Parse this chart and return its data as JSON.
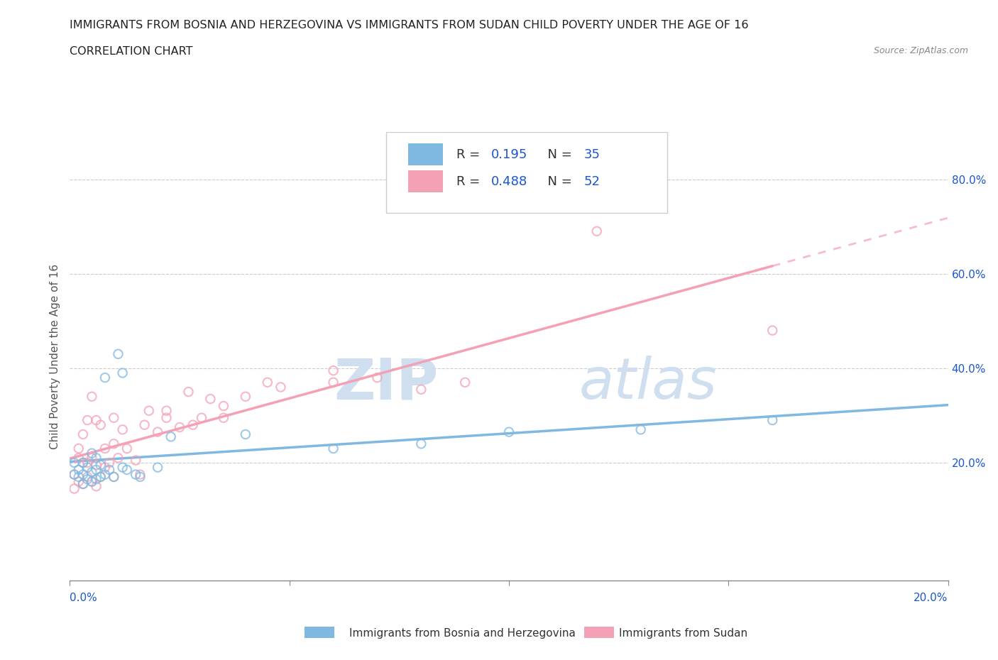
{
  "title_line1": "IMMIGRANTS FROM BOSNIA AND HERZEGOVINA VS IMMIGRANTS FROM SUDAN CHILD POVERTY UNDER THE AGE OF 16",
  "title_line2": "CORRELATION CHART",
  "source": "Source: ZipAtlas.com",
  "ylabel": "Child Poverty Under the Age of 16",
  "xlabel_bosnia": "Immigrants from Bosnia and Herzegovina",
  "xlabel_sudan": "Immigrants from Sudan",
  "xlim": [
    0.0,
    0.2
  ],
  "ylim": [
    -0.05,
    0.9
  ],
  "plot_ylim": [
    0.0,
    0.9
  ],
  "xtick_left_label": "0.0%",
  "xtick_right_label": "20.0%",
  "xtick_left_val": 0.0,
  "xtick_right_val": 0.2,
  "ytick_labels": [
    "20.0%",
    "40.0%",
    "60.0%",
    "80.0%"
  ],
  "ytick_positions": [
    0.2,
    0.4,
    0.6,
    0.8
  ],
  "R_bosnia": 0.195,
  "N_bosnia": 35,
  "R_sudan": 0.488,
  "N_sudan": 52,
  "color_bosnia": "#7fb8e0",
  "color_sudan": "#f4a0b5",
  "color_R": "#1a56cc",
  "watermark_zip": "ZIP",
  "watermark_atlas": "atlas",
  "watermark_color": "#d0dff0",
  "bosnia_x": [
    0.001,
    0.001,
    0.002,
    0.002,
    0.003,
    0.003,
    0.003,
    0.004,
    0.004,
    0.005,
    0.005,
    0.005,
    0.006,
    0.006,
    0.006,
    0.007,
    0.007,
    0.008,
    0.008,
    0.009,
    0.01,
    0.011,
    0.012,
    0.012,
    0.013,
    0.015,
    0.016,
    0.02,
    0.023,
    0.04,
    0.06,
    0.08,
    0.1,
    0.13,
    0.16
  ],
  "bosnia_y": [
    0.175,
    0.2,
    0.17,
    0.185,
    0.155,
    0.175,
    0.2,
    0.165,
    0.19,
    0.16,
    0.18,
    0.22,
    0.165,
    0.185,
    0.21,
    0.17,
    0.195,
    0.175,
    0.38,
    0.185,
    0.17,
    0.43,
    0.19,
    0.39,
    0.185,
    0.175,
    0.17,
    0.19,
    0.255,
    0.26,
    0.23,
    0.24,
    0.265,
    0.27,
    0.29
  ],
  "sudan_x": [
    0.001,
    0.001,
    0.002,
    0.002,
    0.002,
    0.003,
    0.003,
    0.003,
    0.004,
    0.004,
    0.004,
    0.005,
    0.005,
    0.005,
    0.006,
    0.006,
    0.006,
    0.007,
    0.007,
    0.008,
    0.008,
    0.009,
    0.01,
    0.01,
    0.01,
    0.011,
    0.012,
    0.013,
    0.015,
    0.016,
    0.017,
    0.018,
    0.02,
    0.022,
    0.022,
    0.025,
    0.027,
    0.028,
    0.03,
    0.032,
    0.035,
    0.035,
    0.04,
    0.045,
    0.048,
    0.06,
    0.06,
    0.07,
    0.08,
    0.09,
    0.12,
    0.16
  ],
  "sudan_y": [
    0.145,
    0.175,
    0.16,
    0.21,
    0.23,
    0.155,
    0.2,
    0.26,
    0.17,
    0.2,
    0.29,
    0.16,
    0.21,
    0.34,
    0.15,
    0.195,
    0.29,
    0.17,
    0.28,
    0.19,
    0.23,
    0.2,
    0.17,
    0.24,
    0.295,
    0.21,
    0.27,
    0.23,
    0.205,
    0.175,
    0.28,
    0.31,
    0.265,
    0.295,
    0.31,
    0.275,
    0.35,
    0.28,
    0.295,
    0.335,
    0.295,
    0.32,
    0.34,
    0.37,
    0.36,
    0.37,
    0.395,
    0.38,
    0.355,
    0.37,
    0.69,
    0.48
  ]
}
